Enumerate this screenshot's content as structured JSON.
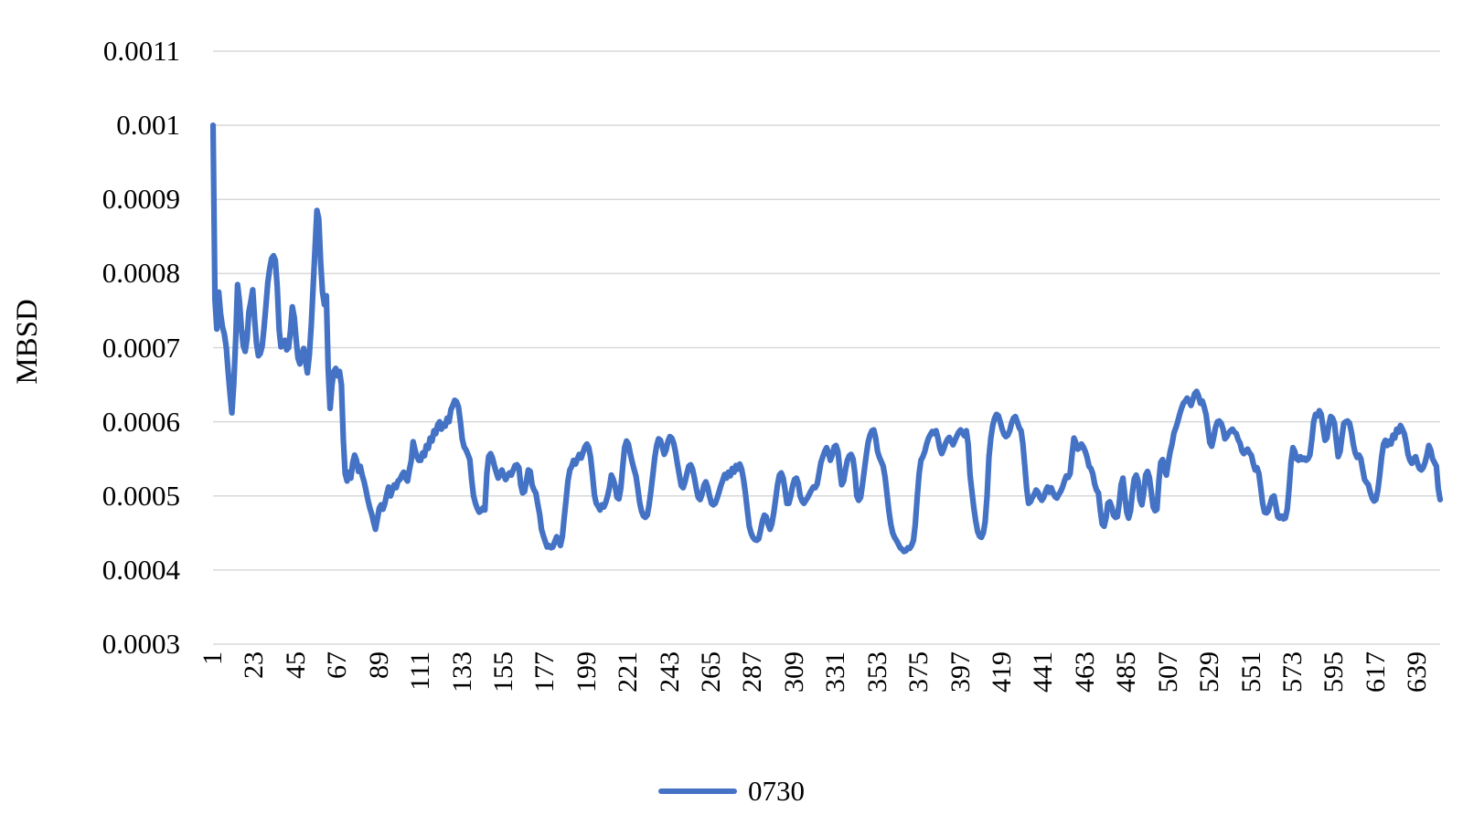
{
  "chart_data": {
    "type": "line",
    "title": "",
    "xlabel": "",
    "ylabel": "MBSD",
    "legend_position": "bottom",
    "grid": "horizontal-only",
    "background_color": "#ffffff",
    "gridline_color": "#d9d9d9",
    "text_color": "#000000",
    "ylim": [
      0.0003,
      0.0011
    ],
    "y_tick_labels_top_to_bottom": [
      "0.0011",
      "0.001",
      "0.0009",
      "0.0008",
      "0.0007",
      "0.0006",
      "0.0005",
      "0.0004",
      "0.0003"
    ],
    "y_tick_values_e6_top_to_bottom": [
      1100,
      1000,
      900,
      800,
      700,
      600,
      500,
      400,
      300
    ],
    "x_tick_labels": [
      1,
      23,
      45,
      67,
      89,
      111,
      133,
      155,
      177,
      199,
      221,
      243,
      265,
      287,
      309,
      331,
      353,
      375,
      397,
      419,
      441,
      463,
      485,
      507,
      529,
      551,
      573,
      595,
      617,
      639
    ],
    "x_start": 1,
    "x_step": 1,
    "x_count": 651,
    "value_scale": 1e-06,
    "series": [
      {
        "name": "0730",
        "color": "#4472c4",
        "values_e6": [
          1000,
          765,
          725,
          775,
          745,
          728,
          718,
          700,
          668,
          638,
          612,
          652,
          712,
          785,
          762,
          726,
          703,
          695,
          712,
          748,
          762,
          778,
          740,
          706,
          689,
          692,
          702,
          726,
          756,
          788,
          806,
          820,
          824,
          818,
          782,
          724,
          701,
          705,
          710,
          697,
          700,
          722,
          755,
          741,
          712,
          686,
          678,
          690,
          699,
          682,
          666,
          690,
          730,
          780,
          833,
          885,
          874,
          815,
          775,
          758,
          770,
          672,
          618,
          650,
          668,
          672,
          662,
          668,
          650,
          575,
          530,
          520,
          532,
          524,
          545,
          555,
          548,
          533,
          540,
          528,
          519,
          508,
          495,
          484,
          476,
          465,
          455,
          468,
          483,
          488,
          482,
          490,
          502,
          512,
          500,
          508,
          515,
          511,
          520,
          522,
          528,
          532,
          524,
          520,
          535,
          548,
          573,
          562,
          553,
          548,
          548,
          558,
          554,
          568,
          564,
          578,
          574,
          588,
          584,
          596,
          600,
          590,
          597,
          594,
          605,
          600,
          616,
          622,
          629,
          627,
          620,
          600,
          577,
          566,
          562,
          556,
          549,
          521,
          500,
          490,
          483,
          478,
          480,
          484,
          481,
          530,
          553,
          557,
          551,
          541,
          532,
          524,
          528,
          535,
          528,
          522,
          527,
          531,
          528,
          535,
          541,
          542,
          538,
          515,
          504,
          506,
          520,
          535,
          533,
          515,
          508,
          504,
          489,
          475,
          455,
          446,
          438,
          431,
          433,
          430,
          431,
          438,
          445,
          440,
          433,
          445,
          470,
          495,
          520,
          535,
          540,
          548,
          543,
          550,
          556,
          551,
          559,
          566,
          570,
          565,
          552,
          528,
          501,
          490,
          486,
          481,
          488,
          485,
          491,
          500,
          512,
          528,
          522,
          513,
          498,
          496,
          511,
          539,
          565,
          574,
          570,
          557,
          546,
          536,
          527,
          510,
          491,
          479,
          473,
          471,
          474,
          488,
          508,
          530,
          552,
          568,
          577,
          575,
          566,
          556,
          562,
          574,
          580,
          578,
          571,
          559,
          543,
          528,
          514,
          511,
          519,
          530,
          540,
          542,
          536,
          524,
          510,
          498,
          495,
          502,
          514,
          519,
          512,
          500,
          490,
          488,
          490,
          497,
          505,
          514,
          521,
          529,
          524,
          532,
          527,
          537,
          532,
          541,
          536,
          543,
          536,
          522,
          504,
          481,
          459,
          450,
          444,
          441,
          440,
          442,
          453,
          466,
          474,
          472,
          462,
          455,
          462,
          477,
          496,
          515,
          528,
          531,
          524,
          508,
          490,
          490,
          500,
          513,
          522,
          524,
          517,
          500,
          493,
          490,
          494,
          498,
          503,
          508,
          512,
          511,
          516,
          530,
          545,
          553,
          560,
          565,
          558,
          548,
          555,
          566,
          568,
          560,
          535,
          515,
          520,
          535,
          548,
          554,
          556,
          550,
          530,
          500,
          494,
          498,
          515,
          535,
          555,
          572,
          582,
          588,
          589,
          578,
          560,
          552,
          546,
          540,
          525,
          502,
          480,
          462,
          450,
          444,
          440,
          435,
          430,
          428,
          425,
          426,
          430,
          429,
          433,
          440,
          462,
          498,
          530,
          548,
          553,
          560,
          570,
          578,
          583,
          587,
          584,
          588,
          578,
          564,
          557,
          563,
          571,
          576,
          579,
          574,
          569,
          575,
          581,
          586,
          589,
          585,
          581,
          588,
          570,
          528,
          505,
          484,
          466,
          452,
          446,
          444,
          450,
          465,
          500,
          553,
          578,
          595,
          605,
          610,
          608,
          600,
          590,
          583,
          580,
          582,
          588,
          598,
          605,
          607,
          600,
          592,
          588,
          570,
          540,
          510,
          490,
          492,
          498,
          502,
          508,
          505,
          498,
          494,
          498,
          506,
          512,
          505,
          511,
          504,
          499,
          497,
          502,
          506,
          512,
          520,
          527,
          525,
          530,
          555,
          578,
          572,
          563,
          565,
          570,
          566,
          560,
          552,
          540,
          537,
          530,
          516,
          508,
          504,
          480,
          462,
          459,
          470,
          490,
          492,
          485,
          474,
          471,
          472,
          490,
          515,
          524,
          500,
          478,
          470,
          480,
          505,
          523,
          528,
          520,
          495,
          488,
          505,
          528,
          533,
          525,
          505,
          485,
          480,
          482,
          520,
          545,
          549,
          535,
          528,
          545,
          560,
          570,
          585,
          592,
          600,
          610,
          618,
          625,
          628,
          632,
          628,
          622,
          630,
          638,
          641,
          635,
          625,
          628,
          620,
          610,
          590,
          572,
          567,
          578,
          592,
          600,
          601,
          598,
          590,
          577,
          580,
          585,
          588,
          590,
          586,
          584,
          576,
          571,
          561,
          557,
          561,
          563,
          558,
          555,
          544,
          535,
          538,
          530,
          510,
          490,
          478,
          477,
          480,
          490,
          498,
          500,
          486,
          472,
          470,
          473,
          469,
          470,
          482,
          510,
          545,
          565,
          560,
          550,
          548,
          553,
          549,
          551,
          548,
          550,
          555,
          575,
          600,
          610,
          608,
          615,
          610,
          592,
          575,
          578,
          595,
          607,
          605,
          598,
          575,
          553,
          560,
          580,
          598,
          600,
          601,
          598,
          586,
          570,
          558,
          552,
          555,
          550,
          535,
          522,
          518,
          515,
          505,
          497,
          493,
          495,
          508,
          528,
          552,
          570,
          575,
          568,
          574,
          570,
          582,
          578,
          590,
          586,
          595,
          590,
          584,
          572,
          556,
          548,
          544,
          550,
          553,
          544,
          537,
          535,
          538,
          545,
          555,
          568,
          562,
          550,
          545,
          540,
          510,
          495
        ]
      }
    ]
  },
  "legend": {
    "series_label": "0730"
  }
}
